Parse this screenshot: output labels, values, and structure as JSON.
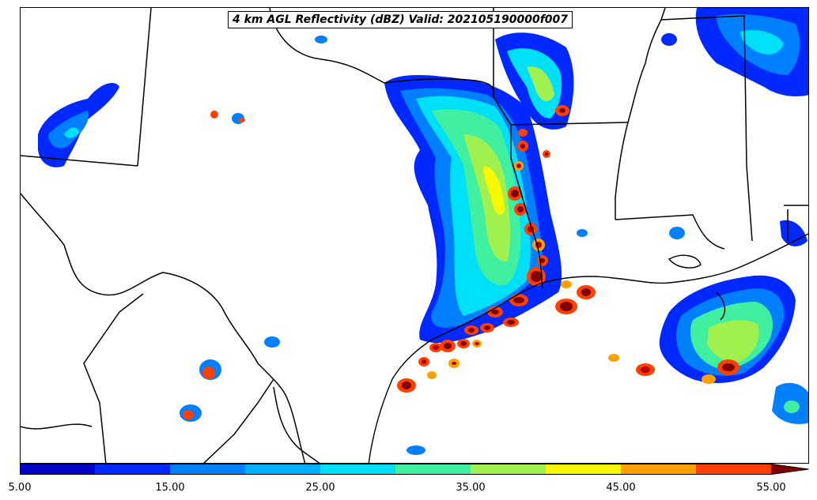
{
  "title": "4 km AGL Reflectivity (dBZ) Valid: 202105190000f007",
  "colorbar": {
    "levels": [
      5,
      10,
      15,
      20,
      25,
      30,
      35,
      40,
      45,
      50,
      55
    ],
    "colors": [
      "#0000c8",
      "#0028ff",
      "#0080ff",
      "#00b0ff",
      "#00e0f8",
      "#40f0a0",
      "#a0f050",
      "#f8f800",
      "#ffa000",
      "#ff4000",
      "#b40000",
      "#800000"
    ],
    "extend": "max",
    "tick_labels": [
      "5.00",
      "15.00",
      "25.00",
      "35.00",
      "45.00",
      "55.00"
    ],
    "tick_values": [
      5,
      15,
      25,
      35,
      45,
      55
    ]
  }
}
